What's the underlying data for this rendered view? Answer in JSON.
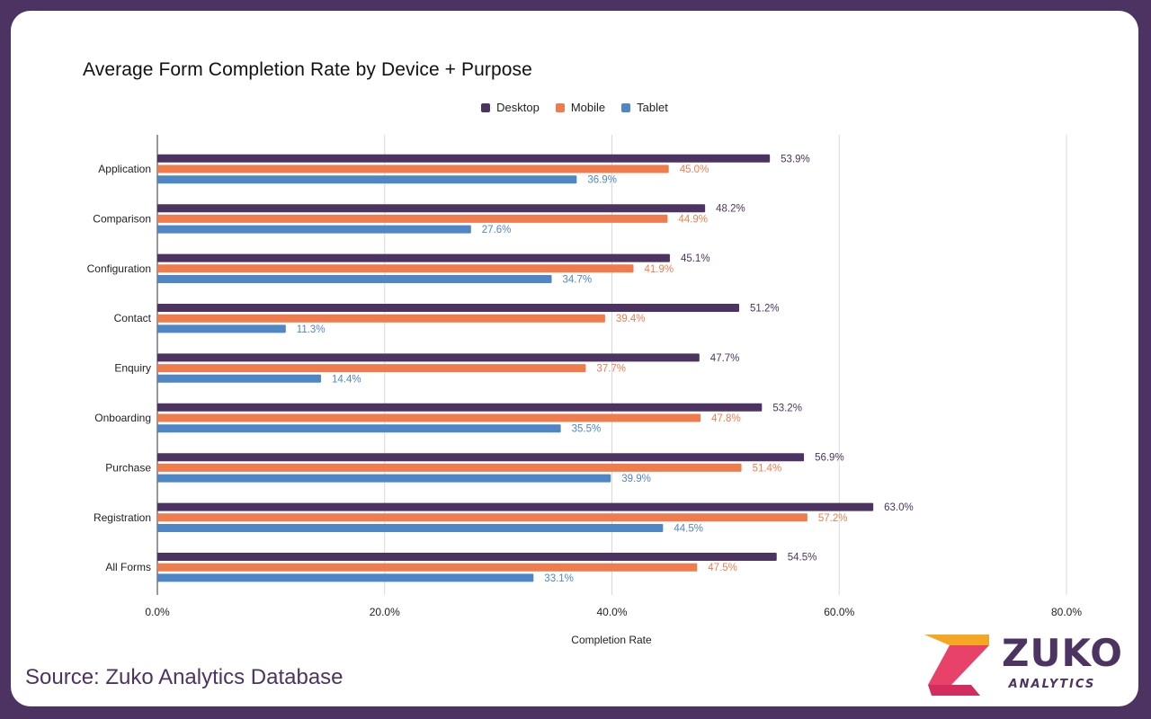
{
  "source_text": "Source: Zuko Analytics Database",
  "logo": {
    "word": "ZUKO",
    "subword": "ANALYTICS"
  },
  "colors": {
    "frame": "#4d3362",
    "desktop": "#4d3362",
    "mobile": "#f07c4e",
    "tablet": "#4f86c6",
    "grid": "#d9d9d9"
  },
  "chart_data": {
    "type": "bar",
    "orientation": "horizontal",
    "title": "Average Form Completion Rate by Device + Purpose",
    "xlabel": "Completion Rate",
    "ylabel": "",
    "xlim": [
      0,
      80
    ],
    "xticks": [
      "0.0%",
      "20.0%",
      "40.0%",
      "60.0%",
      "80.0%"
    ],
    "grid": true,
    "legend_position": "top",
    "categories": [
      "Application",
      "Comparison",
      "Configuration",
      "Contact",
      "Enquiry",
      "Onboarding",
      "Purchase",
      "Registration",
      "All Forms"
    ],
    "series": [
      {
        "name": "Desktop",
        "color": "#4d3362",
        "values": [
          53.9,
          48.2,
          45.1,
          51.2,
          47.7,
          53.2,
          56.9,
          63.0,
          54.5
        ]
      },
      {
        "name": "Mobile",
        "color": "#f07c4e",
        "values": [
          45.0,
          44.9,
          41.9,
          39.4,
          37.7,
          47.8,
          51.4,
          57.2,
          47.5
        ]
      },
      {
        "name": "Tablet",
        "color": "#4f86c6",
        "values": [
          36.9,
          27.6,
          34.7,
          11.3,
          14.4,
          35.5,
          39.9,
          44.5,
          33.1
        ]
      }
    ]
  }
}
